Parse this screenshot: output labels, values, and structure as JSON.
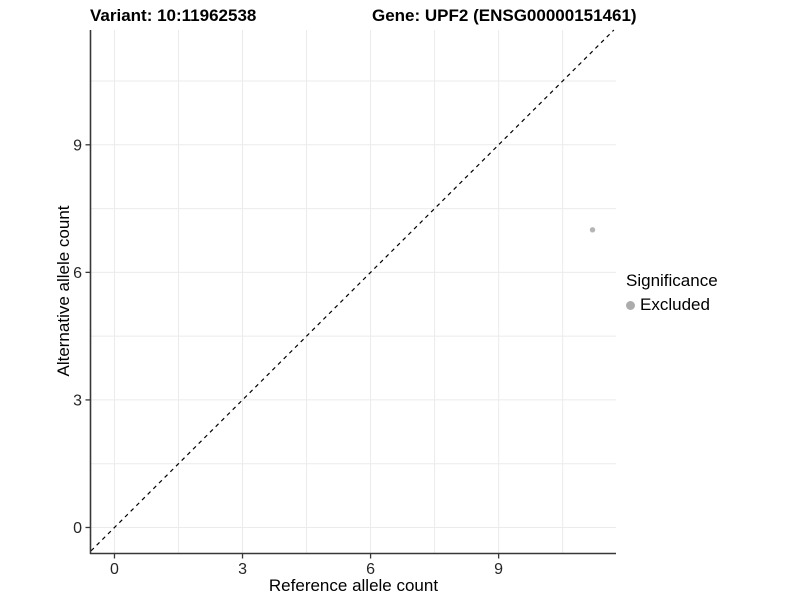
{
  "figure": {
    "title_left": "Variant: 10:11962538",
    "title_right": "Gene: UPF2 (ENSG00000151461)"
  },
  "chart_data": {
    "type": "scatter",
    "title": "Variant: 10:11962538   Gene: UPF2 (ENSG00000151461)",
    "xlabel": "Reference allele count",
    "ylabel": "Alternative allele count",
    "xlim": [
      -0.55,
      11.75
    ],
    "ylim": [
      -0.6,
      11.7
    ],
    "x_ticks": [
      0,
      3,
      6,
      9
    ],
    "y_ticks": [
      0,
      3,
      6,
      9
    ],
    "x_minor": [
      1.5,
      4.5,
      7.5,
      10.5
    ],
    "y_minor": [
      1.5,
      4.5,
      7.5,
      10.5
    ],
    "grid": true,
    "identity_line": {
      "show": true,
      "style": "dashed",
      "color": "#000000"
    },
    "points": [
      {
        "x": 11.2,
        "y": 7.0,
        "significance": "Excluded"
      }
    ],
    "legend": {
      "title": "Significance",
      "position": "right",
      "entries": [
        {
          "label": "Excluded",
          "color": "#acacac"
        }
      ]
    },
    "colors": {
      "point": "#b5b5b5",
      "gridline": "#ebebeb",
      "axis_line": "#383838",
      "tick_text": "#262626",
      "background": "#ffffff"
    }
  }
}
